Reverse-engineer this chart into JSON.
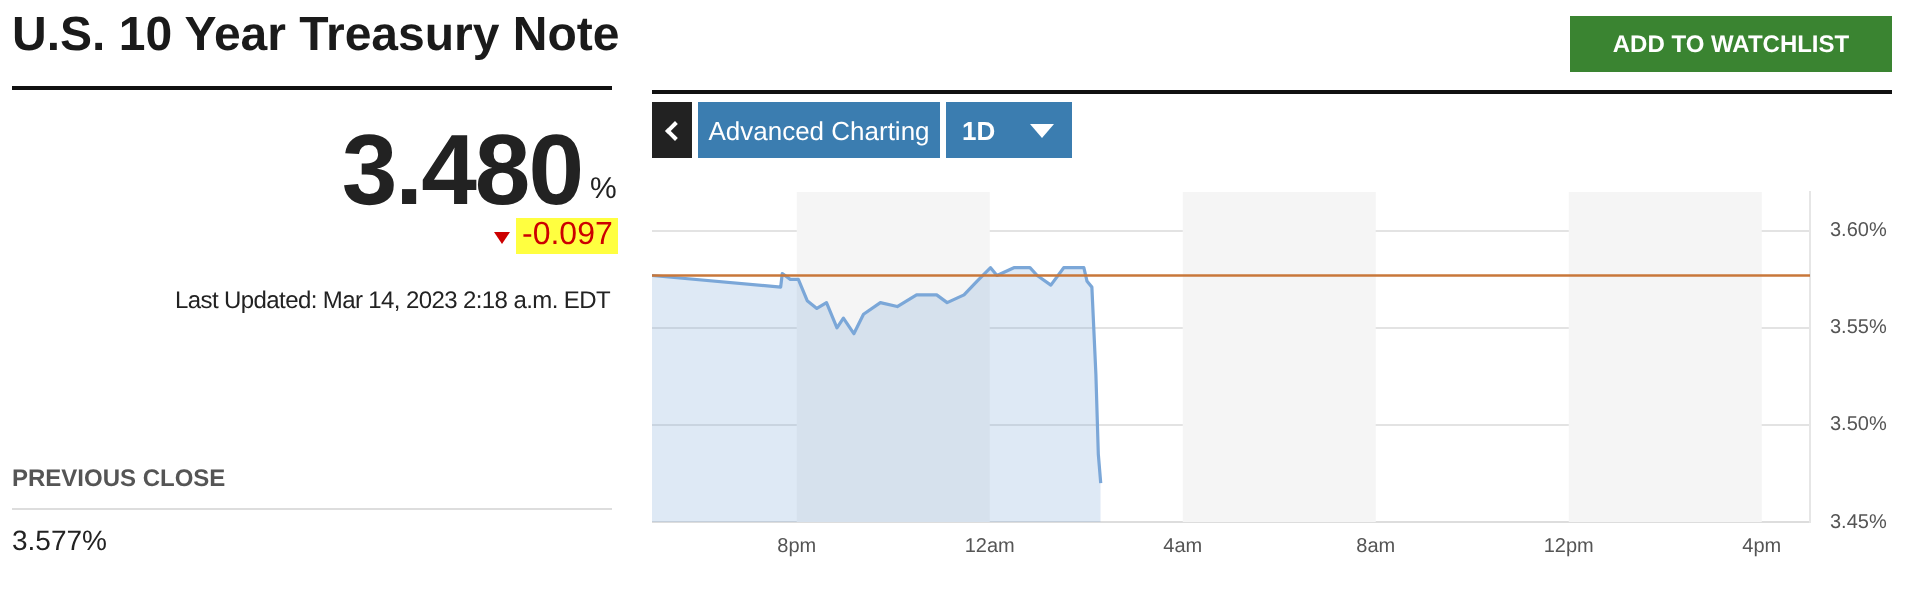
{
  "chart_data": {
    "type": "area",
    "title": "U.S. 10 Year Treasury Note",
    "annotations": [
      "3.480",
      "%",
      "-0.097",
      "Last Updated: Mar 14, 2023 2:18 a.m. EDT",
      "PREVIOUS CLOSE",
      "3.577%",
      "ADD TO WATCHLIST",
      "Advanced Charting",
      "1D"
    ],
    "series": [
      {
        "color": "#7ba7d8",
        "x": [
          "2023-03-13T17:00",
          "2023-03-13T19:40",
          "2023-03-13T19:42",
          "2023-03-13T19:52",
          "2023-03-13T20:02",
          "2023-03-13T20:13",
          "2023-03-13T20:25",
          "2023-03-13T20:37",
          "2023-03-13T20:50",
          "2023-03-13T20:58",
          "2023-03-13T21:11",
          "2023-03-13T21:23",
          "2023-03-13T21:44",
          "2023-03-13T22:05",
          "2023-03-13T22:29",
          "2023-03-13T22:54",
          "2023-03-13T23:07",
          "2023-03-13T23:28",
          "2023-03-13T23:44",
          "2023-03-14T00:01",
          "2023-03-14T00:09",
          "2023-03-14T00:30",
          "2023-03-14T00:50",
          "2023-03-14T00:59",
          "2023-03-14T01:16",
          "2023-03-14T01:32",
          "2023-03-14T01:57",
          "2023-03-14T02:01",
          "2023-03-14T02:07",
          "2023-03-14T02:12",
          "2023-03-14T02:15",
          "2023-03-14T02:18"
        ],
        "values": [
          3.577,
          3.571,
          3.578,
          3.575,
          3.575,
          3.564,
          3.56,
          3.563,
          3.55,
          3.555,
          3.547,
          3.557,
          3.563,
          3.561,
          3.567,
          3.567,
          3.563,
          3.567,
          3.574,
          3.581,
          3.577,
          3.581,
          3.581,
          3.577,
          3.572,
          3.581,
          3.581,
          3.574,
          3.571,
          3.526,
          3.485,
          3.47
        ]
      }
    ],
    "xlim": [
      "2023-03-13T17:00",
      "2023-03-14T17:00"
    ],
    "xticks": [
      {
        "value": "2023-03-13T20:00",
        "label": "8pm"
      },
      {
        "value": "2023-03-14T00:00",
        "label": "12am"
      },
      {
        "value": "2023-03-14T04:00",
        "label": "4am"
      },
      {
        "value": "2023-03-14T08:00",
        "label": "8am"
      },
      {
        "value": "2023-03-14T12:00",
        "label": "12pm"
      },
      {
        "value": "2023-03-14T16:00",
        "label": "4pm"
      }
    ],
    "ylim": [
      3.45,
      3.62
    ],
    "yticks": [
      {
        "value": 3.45,
        "label": "3.45%"
      },
      {
        "value": 3.5,
        "label": "3.50%"
      },
      {
        "value": 3.55,
        "label": "3.55%"
      },
      {
        "value": 3.6,
        "label": "3.60%"
      }
    ],
    "ref_lines": [
      {
        "axis": "y",
        "value": 3.577,
        "color": "#c8773a"
      }
    ],
    "bands": [
      {
        "axis": "x",
        "from": "2023-03-13T20:00",
        "to": "2023-03-14T00:00",
        "color": "#f5f5f5"
      },
      {
        "axis": "x",
        "from": "2023-03-14T04:00",
        "to": "2023-03-14T08:00",
        "color": "#f5f5f5"
      },
      {
        "axis": "x",
        "from": "2023-03-14T12:00",
        "to": "2023-03-14T16:00",
        "color": "#f5f5f5"
      }
    ],
    "grid": "y",
    "legend": false
  }
}
